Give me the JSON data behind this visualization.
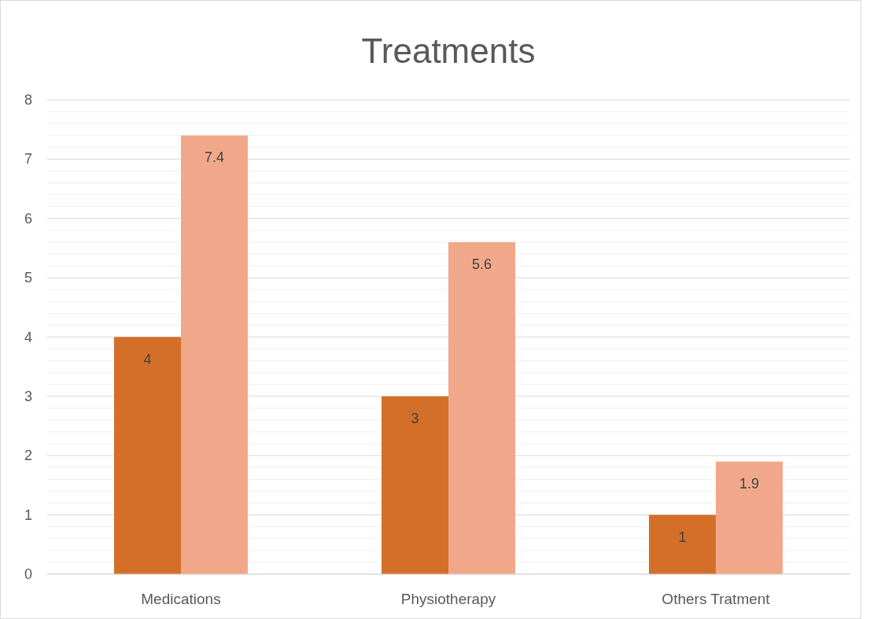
{
  "chart_data": {
    "type": "bar",
    "title": "Treatments",
    "categories": [
      "Medications",
      "Physiotherapy",
      "Others Tratment"
    ],
    "series": [
      {
        "color": "#d46f2a",
        "values": [
          4,
          3,
          1
        ]
      },
      {
        "color": "#f1a88a",
        "values": [
          7.4,
          5.6,
          1.9
        ]
      }
    ],
    "ylim": [
      0,
      8
    ],
    "yticks": [
      0,
      {
        "value": 0.2,
        "label": null
      },
      {
        "value": 0.4,
        "label": null
      },
      {
        "value": 0.6,
        "label": null
      },
      {
        "value": 0.8,
        "label": null
      },
      1,
      {
        "value": 1.2,
        "label": null
      },
      {
        "value": 1.4,
        "label": null
      },
      {
        "value": 1.6,
        "label": null
      },
      {
        "value": 1.8,
        "label": null
      },
      2,
      {
        "value": 2.2,
        "label": null
      },
      {
        "value": 2.4,
        "label": null
      },
      {
        "value": 2.6,
        "label": null
      },
      {
        "value": 2.8,
        "label": null
      },
      3,
      {
        "value": 3.2,
        "label": null
      },
      {
        "value": 3.4,
        "label": null
      },
      {
        "value": 3.6,
        "label": null
      },
      {
        "value": 3.8,
        "label": null
      },
      4,
      {
        "value": 4.2,
        "label": null
      },
      {
        "value": 4.4,
        "label": null
      },
      {
        "value": 4.6,
        "label": null
      },
      {
        "value": 4.8,
        "label": null
      },
      5,
      {
        "value": 5.2,
        "label": null
      },
      {
        "value": 5.4,
        "label": null
      },
      {
        "value": 5.6,
        "label": null
      },
      {
        "value": 5.8,
        "label": null
      },
      6,
      {
        "value": 6.2,
        "label": null
      },
      {
        "value": 6.4,
        "label": null
      },
      {
        "value": 6.6,
        "label": null
      },
      {
        "value": 6.8,
        "label": null
      },
      7,
      {
        "value": 7.2,
        "label": null
      },
      {
        "value": 7.4,
        "label": null
      },
      {
        "value": 7.6,
        "label": null
      },
      {
        "value": 7.8,
        "label": null
      },
      8
    ],
    "grid": true,
    "data_labels": true
  }
}
